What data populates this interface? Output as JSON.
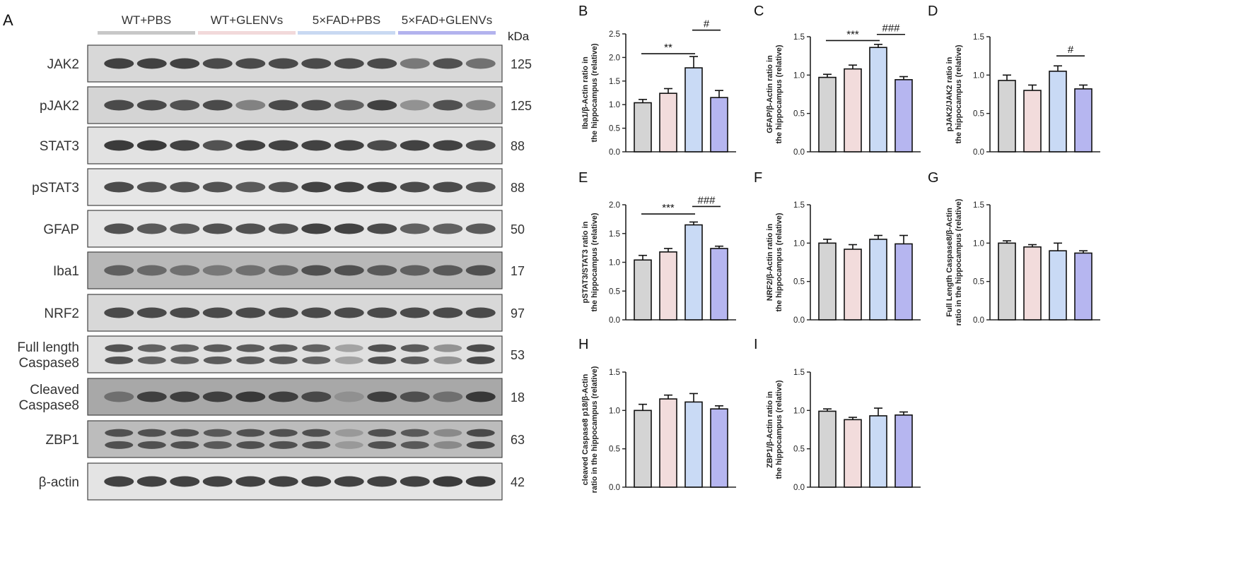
{
  "panel_a": {
    "letter": "A",
    "kda_label": "kDa",
    "groups": [
      {
        "name": "WT+PBS",
        "color": "#c8c8c8"
      },
      {
        "name": "WT+GLENVs",
        "color": "#f2d9da"
      },
      {
        "name": "5×FAD+PBS",
        "color": "#c9d9f2"
      },
      {
        "name": "5×FAD+GLENVs",
        "color": "#b3b3ee"
      }
    ],
    "blots": [
      {
        "label": "JAK2",
        "kda": "125",
        "bg": "#d8d8d8",
        "intensity": [
          0.9,
          0.9,
          0.9,
          0.85,
          0.85,
          0.85,
          0.85,
          0.85,
          0.85,
          0.55,
          0.8,
          0.6
        ],
        "rows": 1
      },
      {
        "label": "pJAK2",
        "kda": "125",
        "bg": "#d4d4d4",
        "intensity": [
          0.85,
          0.85,
          0.8,
          0.85,
          0.5,
          0.85,
          0.85,
          0.7,
          0.9,
          0.4,
          0.8,
          0.5
        ],
        "rows": 1
      },
      {
        "label": "STAT3",
        "kda": "88",
        "bg": "#e2e2e2",
        "intensity": [
          0.95,
          0.95,
          0.9,
          0.8,
          0.9,
          0.9,
          0.9,
          0.9,
          0.85,
          0.9,
          0.9,
          0.85
        ],
        "rows": 1
      },
      {
        "label": "pSTAT3",
        "kda": "88",
        "bg": "#e6e6e6",
        "intensity": [
          0.85,
          0.8,
          0.8,
          0.8,
          0.75,
          0.8,
          0.9,
          0.9,
          0.9,
          0.85,
          0.85,
          0.8
        ],
        "rows": 1
      },
      {
        "label": "GFAP",
        "kda": "50",
        "bg": "#e6e6e6",
        "intensity": [
          0.8,
          0.75,
          0.75,
          0.8,
          0.8,
          0.8,
          0.9,
          0.9,
          0.85,
          0.7,
          0.7,
          0.75
        ],
        "rows": 1
      },
      {
        "label": "Iba1",
        "kda": "17",
        "bg": "#b8b8b8",
        "intensity": [
          0.7,
          0.65,
          0.6,
          0.55,
          0.6,
          0.65,
          0.8,
          0.8,
          0.75,
          0.7,
          0.75,
          0.8
        ],
        "rows": 1
      },
      {
        "label": "NRF2",
        "kda": "97",
        "bg": "#d8d8d8",
        "intensity": [
          0.85,
          0.85,
          0.85,
          0.85,
          0.85,
          0.85,
          0.85,
          0.85,
          0.85,
          0.85,
          0.85,
          0.85
        ],
        "rows": 1
      },
      {
        "label": "Full length\nCaspase8",
        "kda": "53",
        "bg": "#e0e0e0",
        "intensity": [
          0.8,
          0.7,
          0.7,
          0.75,
          0.75,
          0.75,
          0.7,
          0.3,
          0.8,
          0.75,
          0.4,
          0.85
        ],
        "rows": 2
      },
      {
        "label": "Cleaved\nCaspase8",
        "kda": "18",
        "bg": "#a8a8a8",
        "intensity": [
          0.6,
          0.9,
          0.9,
          0.9,
          0.95,
          0.9,
          0.85,
          0.4,
          0.9,
          0.8,
          0.6,
          0.95
        ],
        "rows": 1
      },
      {
        "label": "ZBP1",
        "kda": "63",
        "bg": "#bcbcbc",
        "intensity": [
          0.8,
          0.8,
          0.8,
          0.75,
          0.8,
          0.8,
          0.8,
          0.35,
          0.8,
          0.75,
          0.45,
          0.85
        ],
        "rows": 2
      },
      {
        "label": "β-actin",
        "kda": "42",
        "bg": "#e4e4e4",
        "intensity": [
          0.9,
          0.9,
          0.9,
          0.9,
          0.9,
          0.9,
          0.9,
          0.9,
          0.9,
          0.9,
          0.95,
          0.95
        ],
        "rows": 1
      }
    ]
  },
  "chart_data": [
    {
      "panel": "B",
      "type": "bar",
      "ylabel": "Iba1/β-Actin ratio in\nthe hippocampus (relative)",
      "ylim": [
        0,
        2.5
      ],
      "yticks": [
        "0.0",
        "0.5",
        "1.0",
        "1.5",
        "2.0",
        "2.5"
      ],
      "values": [
        1.04,
        1.24,
        1.78,
        1.15
      ],
      "errors": [
        0.07,
        0.1,
        0.24,
        0.15
      ],
      "colors": [
        "#d4d4d4",
        "#f2dcdc",
        "#c9daf5",
        "#b6b6f0"
      ],
      "sig": [
        {
          "text": "**",
          "from": 0,
          "to": 2,
          "level": 2.08
        },
        {
          "text": "#",
          "from": 2,
          "to": 3,
          "level": 2.58
        }
      ]
    },
    {
      "panel": "C",
      "type": "bar",
      "ylabel": "GFAP/β-Actin ratio in\nthe hippocampus (relative)",
      "ylim": [
        0,
        1.5
      ],
      "yticks": [
        "0.0",
        "0.5",
        "1.0",
        "1.5"
      ],
      "values": [
        0.97,
        1.08,
        1.36,
        0.94
      ],
      "errors": [
        0.04,
        0.05,
        0.04,
        0.04
      ],
      "colors": [
        "#d4d4d4",
        "#f2dcdc",
        "#c9daf5",
        "#b6b6f0"
      ],
      "sig": [
        {
          "text": "***",
          "from": 0,
          "to": 2,
          "level": 1.45
        },
        {
          "text": "###",
          "from": 2,
          "to": 3,
          "level": 1.53
        }
      ]
    },
    {
      "panel": "D",
      "type": "bar",
      "ylabel": "pJAK2/JAK2 ratio in\nthe hippocampus (relative)",
      "ylim": [
        0,
        1.5
      ],
      "yticks": [
        "0.0",
        "0.5",
        "1.0",
        "1.5"
      ],
      "values": [
        0.93,
        0.8,
        1.05,
        0.82
      ],
      "errors": [
        0.07,
        0.07,
        0.07,
        0.05
      ],
      "colors": [
        "#d4d4d4",
        "#f2dcdc",
        "#c9daf5",
        "#b6b6f0"
      ],
      "sig": [
        {
          "text": "#",
          "from": 2,
          "to": 3,
          "level": 1.25
        }
      ]
    },
    {
      "panel": "E",
      "type": "bar",
      "ylabel": "pSTAT3/STAT3 ratio in\nthe hippocampus (relative)",
      "ylim": [
        0,
        2.0
      ],
      "yticks": [
        "0.0",
        "0.5",
        "1.0",
        "1.5",
        "2.0"
      ],
      "values": [
        1.04,
        1.18,
        1.65,
        1.24
      ],
      "errors": [
        0.08,
        0.06,
        0.05,
        0.04
      ],
      "colors": [
        "#d4d4d4",
        "#f2dcdc",
        "#c9daf5",
        "#b6b6f0"
      ],
      "sig": [
        {
          "text": "***",
          "from": 0,
          "to": 2,
          "level": 1.84
        },
        {
          "text": "###",
          "from": 2,
          "to": 3,
          "level": 1.97
        }
      ]
    },
    {
      "panel": "F",
      "type": "bar",
      "ylabel": "NRF2/β-Actin ratio in\nthe hippocampus (relative)",
      "ylim": [
        0,
        1.5
      ],
      "yticks": [
        "0.0",
        "0.5",
        "1.0",
        "1.5"
      ],
      "values": [
        1.0,
        0.92,
        1.05,
        0.99
      ],
      "errors": [
        0.05,
        0.06,
        0.05,
        0.11
      ],
      "colors": [
        "#d4d4d4",
        "#f2dcdc",
        "#c9daf5",
        "#b6b6f0"
      ],
      "sig": []
    },
    {
      "panel": "G",
      "type": "bar",
      "ylabel": "Full Length Caspase8/β-Actin\nratio in the hippocampus (relative)",
      "ylim": [
        0,
        1.5
      ],
      "yticks": [
        "0.0",
        "0.5",
        "1.0",
        "1.5"
      ],
      "values": [
        1.0,
        0.95,
        0.9,
        0.87
      ],
      "errors": [
        0.03,
        0.03,
        0.1,
        0.03
      ],
      "colors": [
        "#d4d4d4",
        "#f2dcdc",
        "#c9daf5",
        "#b6b6f0"
      ],
      "sig": []
    },
    {
      "panel": "H",
      "type": "bar",
      "ylabel": "cleaved Caspase8 p18/β-Actin\nratio in the hippocampus (relative)",
      "ylim": [
        0,
        1.5
      ],
      "yticks": [
        "0.0",
        "0.5",
        "1.0",
        "1.5"
      ],
      "values": [
        1.0,
        1.15,
        1.11,
        1.02
      ],
      "errors": [
        0.08,
        0.05,
        0.11,
        0.04
      ],
      "colors": [
        "#d4d4d4",
        "#f2dcdc",
        "#c9daf5",
        "#b6b6f0"
      ],
      "sig": []
    },
    {
      "panel": "I",
      "type": "bar",
      "ylabel": "ZBP1/β-Actin ratio in\nthe hippocampus (relative)",
      "ylim": [
        0,
        1.5
      ],
      "yticks": [
        "0.0",
        "0.5",
        "1.0",
        "1.5"
      ],
      "values": [
        0.99,
        0.88,
        0.93,
        0.94
      ],
      "errors": [
        0.03,
        0.03,
        0.1,
        0.04
      ],
      "colors": [
        "#d4d4d4",
        "#f2dcdc",
        "#c9daf5",
        "#b6b6f0"
      ],
      "sig": []
    }
  ]
}
